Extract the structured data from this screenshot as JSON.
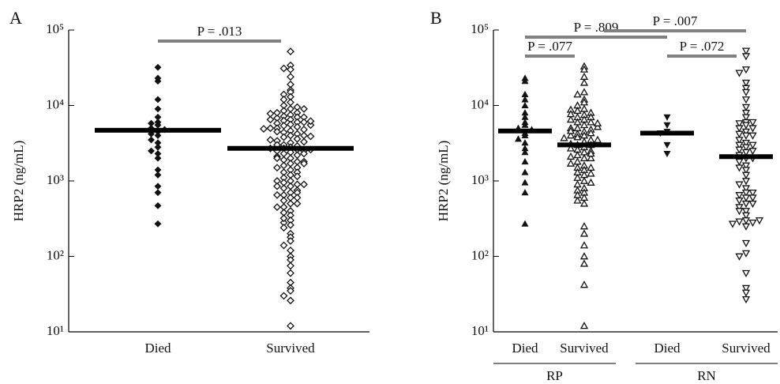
{
  "chart_data": [
    {
      "type": "strip",
      "panel_label": "A",
      "ylabel": "HRP2 (ng/mL)",
      "log_y": true,
      "ylim": [
        10,
        100000
      ],
      "yticks": [
        {
          "value": 10,
          "label": "10¹"
        },
        {
          "value": 100,
          "label": "10²"
        },
        {
          "value": 1000,
          "label": "10³"
        },
        {
          "value": 10000,
          "label": "10⁴"
        },
        {
          "value": 100000,
          "label": "10⁵"
        }
      ],
      "categories": [
        "Died",
        "Survived"
      ],
      "markers": [
        "diamond-filled",
        "diamond-open"
      ],
      "medians": [
        4700,
        2700
      ],
      "values": [
        [
          32000,
          23000,
          21000,
          12000,
          9000,
          7000,
          6000,
          5800,
          5500,
          5000,
          4800,
          4500,
          4200,
          4000,
          3500,
          3200,
          2800,
          2500,
          2300,
          2000,
          1400,
          1200,
          850,
          700,
          470,
          270
        ],
        [
          52000,
          34000,
          31000,
          30000,
          24000,
          19000,
          16000,
          15000,
          14000,
          13000,
          12000,
          11000,
          10000,
          9500,
          9000,
          8500,
          8000,
          7500,
          7200,
          7000,
          6800,
          6500,
          6300,
          6000,
          5800,
          5600,
          5400,
          5200,
          5000,
          4800,
          4600,
          4400,
          4200,
          4000,
          3800,
          3600,
          3400,
          3200,
          3000,
          2900,
          2800,
          2700,
          2600,
          2500,
          2400,
          2300,
          2200,
          2100,
          2000,
          1900,
          1800,
          1700,
          1600,
          1500,
          1400,
          1300,
          1200,
          1100,
          1000,
          950,
          900,
          850,
          800,
          750,
          700,
          650,
          600,
          550,
          500,
          450,
          400,
          380,
          350,
          300,
          280,
          260,
          240,
          200,
          180,
          160,
          140,
          120,
          100,
          90,
          75,
          60,
          45,
          38,
          35,
          30,
          26,
          12,
          7000,
          6000,
          5000,
          4000,
          3500,
          3000,
          2500,
          2000,
          1500,
          1000,
          6500,
          5500,
          4500,
          3300,
          2700,
          2300,
          1800,
          1300,
          900,
          700,
          600,
          500,
          8000,
          9000,
          7800,
          6200,
          4900,
          3900,
          2600,
          1700,
          1150,
          850,
          650,
          450,
          320
        ]
      ],
      "annotations": [
        {
          "text": "P = .013",
          "from": 0,
          "to": 1
        }
      ]
    },
    {
      "type": "strip",
      "panel_label": "B",
      "ylabel": "HRP2 (ng/mL)",
      "log_y": true,
      "ylim": [
        10,
        100000
      ],
      "yticks": [
        {
          "value": 10,
          "label": "10¹"
        },
        {
          "value": 100,
          "label": "10²"
        },
        {
          "value": 1000,
          "label": "10³"
        },
        {
          "value": 10000,
          "label": "10⁴"
        },
        {
          "value": 100000,
          "label": "10⁵"
        }
      ],
      "categories": [
        "Died",
        "Survived",
        "Died",
        "Survived"
      ],
      "group_labels": [
        "RP",
        "RN"
      ],
      "markers": [
        "triangle-up-filled",
        "triangle-up-open",
        "triangle-down-filled",
        "triangle-down-open"
      ],
      "medians": [
        4600,
        3000,
        4300,
        2100
      ],
      "values": [
        [
          23000,
          21000,
          14000,
          12000,
          10000,
          8000,
          7000,
          6000,
          5500,
          5000,
          4800,
          4300,
          4000,
          3600,
          3200,
          2700,
          2400,
          1800,
          1300,
          950,
          700,
          270
        ],
        [
          33000,
          30000,
          24000,
          20000,
          15000,
          14000,
          12000,
          11000,
          10000,
          9000,
          8500,
          8000,
          7500,
          7000,
          6500,
          6000,
          5500,
          5000,
          4800,
          4500,
          4200,
          4000,
          3800,
          3500,
          3300,
          3000,
          2800,
          2600,
          2400,
          2200,
          2000,
          1800,
          1600,
          1500,
          1400,
          1200,
          1100,
          1000,
          900,
          800,
          700,
          600,
          550,
          500,
          250,
          200,
          140,
          100,
          80,
          42,
          12,
          7000,
          6000,
          5000,
          4000,
          3500,
          3000,
          2500,
          2000,
          1500,
          6500,
          5200,
          4300,
          3700,
          2700,
          2300,
          1700,
          1300,
          950,
          8800,
          7700,
          5800,
          4600,
          3100,
          2100,
          1250,
          750,
          650
        ],
        [
          7000,
          5500,
          4500,
          4300,
          3000,
          2300
        ],
        [
          53000,
          45000,
          30000,
          27000,
          20000,
          17000,
          15000,
          12000,
          9500,
          8000,
          7000,
          6000,
          5800,
          5500,
          5000,
          4500,
          4200,
          4000,
          3500,
          3200,
          3000,
          2800,
          2600,
          2400,
          2200,
          2000,
          1800,
          1600,
          1400,
          1200,
          1000,
          900,
          800,
          700,
          650,
          600,
          550,
          500,
          450,
          400,
          350,
          300,
          290,
          280,
          270,
          250,
          150,
          110,
          100,
          60,
          38,
          33,
          27,
          6000,
          5000,
          4000,
          3000,
          2500,
          2000,
          1500,
          700,
          600,
          500,
          400,
          300
        ]
      ],
      "annotations": [
        {
          "text": "P = .077",
          "from": 0,
          "to": 1
        },
        {
          "text": "P = .809",
          "from": 0,
          "to": 2
        },
        {
          "text": "P = .072",
          "from": 2,
          "to": 3
        },
        {
          "text": "P = .007",
          "from": 1,
          "to": 3
        }
      ]
    }
  ]
}
